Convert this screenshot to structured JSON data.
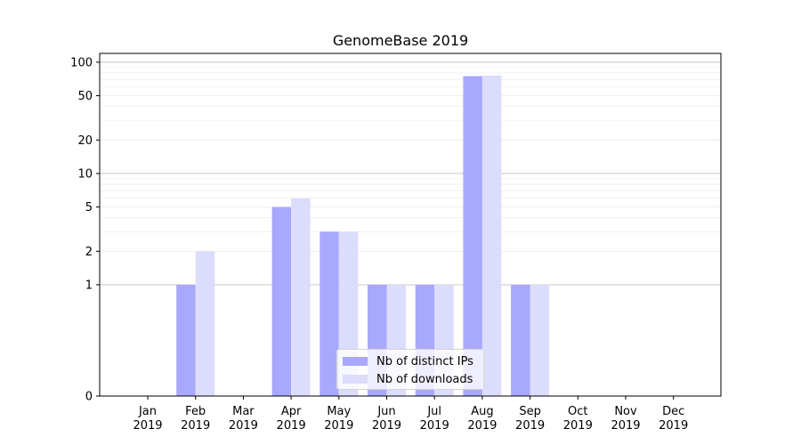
{
  "chart_data": {
    "type": "bar",
    "title": "GenomeBase 2019",
    "xlabel": "",
    "ylabel": "",
    "yscale": "symlog",
    "ylim": [
      0,
      120
    ],
    "yticks": [
      0,
      1,
      2,
      5,
      10,
      20,
      50,
      100
    ],
    "categories": [
      [
        "Jan",
        "2019"
      ],
      [
        "Feb",
        "2019"
      ],
      [
        "Mar",
        "2019"
      ],
      [
        "Apr",
        "2019"
      ],
      [
        "May",
        "2019"
      ],
      [
        "Jun",
        "2019"
      ],
      [
        "Jul",
        "2019"
      ],
      [
        "Aug",
        "2019"
      ],
      [
        "Sep",
        "2019"
      ],
      [
        "Oct",
        "2019"
      ],
      [
        "Nov",
        "2019"
      ],
      [
        "Dec",
        "2019"
      ]
    ],
    "series": [
      {
        "name": "Nb of distinct IPs",
        "color": "#a8a8fc",
        "values": [
          0,
          1,
          0,
          5,
          3,
          1,
          1,
          75,
          1,
          0,
          0,
          0
        ]
      },
      {
        "name": "Nb of downloads",
        "color": "#dcdcfc",
        "values": [
          0,
          2,
          0,
          6,
          3,
          1,
          1,
          76,
          1,
          0,
          0,
          0
        ]
      }
    ],
    "legend_position": "lower center",
    "grid": true
  }
}
